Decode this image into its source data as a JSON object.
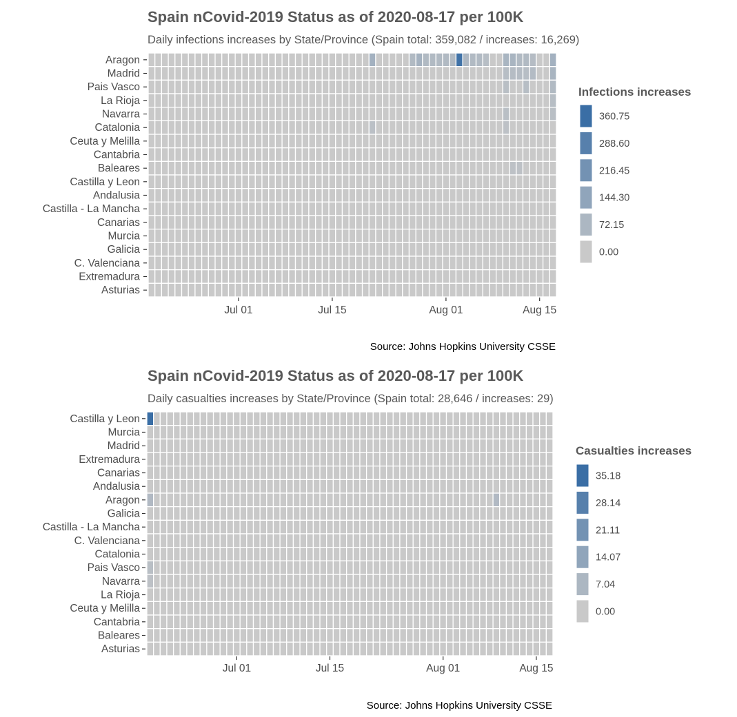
{
  "chart_data": [
    {
      "type": "heatmap",
      "title": "Spain nCovid-2019 Status as of 2020-08-17 per 100K",
      "subtitle": "Daily infections increases by State/Province (Spain total: 359,082 / increases: 16,269)",
      "caption": "Source: Johns Hopkins University CSSE",
      "x_start": "2020-06-18",
      "x_end": "2020-08-17",
      "x_ticks": [
        "Jul 01",
        "Jul 15",
        "Aug 01",
        "Aug 15"
      ],
      "x_tick_dates": [
        "2020-07-01",
        "2020-07-15",
        "2020-08-01",
        "2020-08-15"
      ],
      "rows": [
        "Aragon",
        "Madrid",
        "Pais Vasco",
        "La Rioja",
        "Navarra",
        "Catalonia",
        "Ceuta y Melilla",
        "Cantabria",
        "Baleares",
        "Castilla y Leon",
        "Andalusia",
        "Castilla - La Mancha",
        "Canarias",
        "Murcia",
        "Galicia",
        "C. Valenciana",
        "Extremadura",
        "Asturias"
      ],
      "legend_title": "Infections increases",
      "legend_values": [
        "360.75",
        "288.60",
        "216.45",
        "144.30",
        "72.15",
        "0.00"
      ],
      "vmax": 360.75,
      "grid": false,
      "legend_position": "right",
      "colors": {
        "low": "#c9c9c9",
        "high": "#3a6ea5",
        "grid": "#ffffff"
      },
      "highlights": [
        {
          "row": "Aragon",
          "date": "2020-08-03",
          "value": 345
        },
        {
          "row": "Aragon",
          "date": "2020-07-21",
          "value": 95
        },
        {
          "row": "Aragon",
          "date": "2020-07-28",
          "value": 90
        },
        {
          "row": "Aragon",
          "date": "2020-07-27",
          "value": 60
        },
        {
          "row": "Aragon",
          "date": "2020-07-29",
          "value": 60
        },
        {
          "row": "Aragon",
          "date": "2020-07-30",
          "value": 60
        },
        {
          "row": "Aragon",
          "date": "2020-07-31",
          "value": 60
        },
        {
          "row": "Aragon",
          "date": "2020-08-01",
          "value": 60
        },
        {
          "row": "Aragon",
          "date": "2020-08-02",
          "value": 60
        },
        {
          "row": "Aragon",
          "date": "2020-08-04",
          "value": 70
        },
        {
          "row": "Aragon",
          "date": "2020-08-05",
          "value": 60
        },
        {
          "row": "Aragon",
          "date": "2020-08-06",
          "value": 60
        },
        {
          "row": "Aragon",
          "date": "2020-08-07",
          "value": 45
        },
        {
          "row": "Aragon",
          "date": "2020-08-10",
          "value": 80
        },
        {
          "row": "Aragon",
          "date": "2020-08-11",
          "value": 80
        },
        {
          "row": "Aragon",
          "date": "2020-08-12",
          "value": 60
        },
        {
          "row": "Aragon",
          "date": "2020-08-13",
          "value": 60
        },
        {
          "row": "Aragon",
          "date": "2020-08-14",
          "value": 50
        },
        {
          "row": "Aragon",
          "date": "2020-08-17",
          "value": 95
        },
        {
          "row": "Madrid",
          "date": "2020-08-10",
          "value": 45
        },
        {
          "row": "Madrid",
          "date": "2020-08-11",
          "value": 50
        },
        {
          "row": "Madrid",
          "date": "2020-08-12",
          "value": 50
        },
        {
          "row": "Madrid",
          "date": "2020-08-13",
          "value": 45
        },
        {
          "row": "Madrid",
          "date": "2020-08-14",
          "value": 55
        },
        {
          "row": "Madrid",
          "date": "2020-08-17",
          "value": 80
        },
        {
          "row": "Pais Vasco",
          "date": "2020-08-10",
          "value": 40
        },
        {
          "row": "Pais Vasco",
          "date": "2020-08-13",
          "value": 45
        },
        {
          "row": "Pais Vasco",
          "date": "2020-08-17",
          "value": 60
        },
        {
          "row": "La Rioja",
          "date": "2020-08-17",
          "value": 45
        },
        {
          "row": "Navarra",
          "date": "2020-08-10",
          "value": 40
        },
        {
          "row": "Navarra",
          "date": "2020-08-17",
          "value": 40
        },
        {
          "row": "Catalonia",
          "date": "2020-07-21",
          "value": 35
        },
        {
          "row": "Catalonia",
          "date": "2020-08-10",
          "value": 30
        },
        {
          "row": "Baleares",
          "date": "2020-08-11",
          "value": 30
        },
        {
          "row": "Baleares",
          "date": "2020-08-12",
          "value": 30
        }
      ]
    },
    {
      "type": "heatmap",
      "title": "Spain nCovid-2019 Status as of 2020-08-17 per 100K",
      "subtitle": "Daily casualties increases by State/Province (Spain total: 28,646 / increases: 29)",
      "caption": "Source: Johns Hopkins University CSSE",
      "x_start": "2020-06-18",
      "x_end": "2020-08-17",
      "x_ticks": [
        "Jul 01",
        "Jul 15",
        "Aug 01",
        "Aug 15"
      ],
      "x_tick_dates": [
        "2020-07-01",
        "2020-07-15",
        "2020-08-01",
        "2020-08-15"
      ],
      "rows": [
        "Castilla y Leon",
        "Murcia",
        "Madrid",
        "Extremadura",
        "Canarias",
        "Andalusia",
        "Aragon",
        "Galicia",
        "Castilla - La Mancha",
        "C. Valenciana",
        "Catalonia",
        "Pais Vasco",
        "Navarra",
        "La Rioja",
        "Ceuta y Melilla",
        "Cantabria",
        "Baleares",
        "Asturias"
      ],
      "legend_title": "Casualties increases",
      "legend_values": [
        "35.18",
        "28.14",
        "21.11",
        "14.07",
        "7.04",
        "0.00"
      ],
      "vmax": 35.18,
      "grid": false,
      "legend_position": "right",
      "colors": {
        "low": "#c9c9c9",
        "high": "#3a6ea5",
        "grid": "#ffffff"
      },
      "highlights": [
        {
          "row": "Castilla y Leon",
          "date": "2020-06-18",
          "value": 35.18
        },
        {
          "row": "Aragon",
          "date": "2020-06-18",
          "value": 6
        },
        {
          "row": "Aragon",
          "date": "2020-08-09",
          "value": 6
        },
        {
          "row": "Pais Vasco",
          "date": "2020-06-18",
          "value": 4
        },
        {
          "row": "Navarra",
          "date": "2020-06-18",
          "value": 3
        }
      ]
    }
  ]
}
